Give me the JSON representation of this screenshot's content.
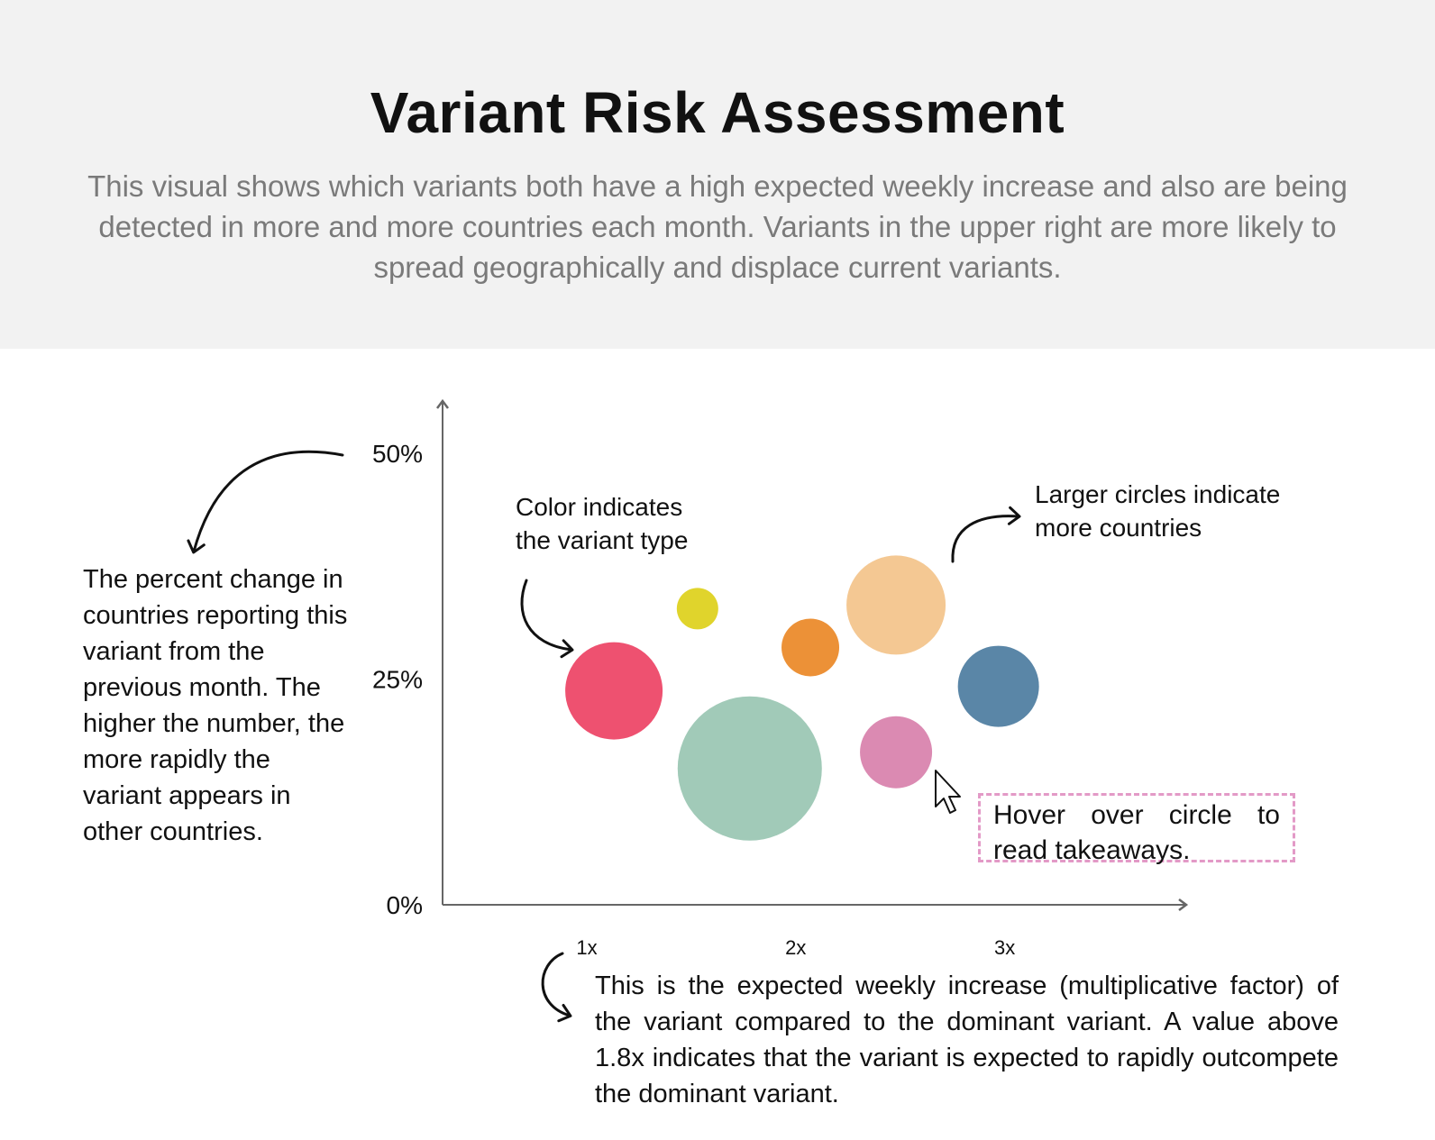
{
  "title": "Variant Risk Assessment",
  "subtitle": "This visual shows which variants both have a high expected weekly increase and also are being detected in more and more countries each month. Variants in the upper right are more likely to spread geographically and displace current variants.",
  "annotations": {
    "y_axis_note": "The percent change in countries reporting this variant from the previous month. The higher the number, the more rapidly the variant appears in other countries.",
    "color_note": "Color indicates the variant type",
    "size_note": "Larger circles indicate more countries",
    "x_axis_note": "This is the expected weekly increase (multiplicative factor) of the variant compared to the dominant variant. A value above 1.8x indicates that the variant is expected to rapidly outcompete the dominant variant.",
    "hover_hint": "Hover over circle to read takeaways."
  },
  "chart_data": {
    "type": "scatter",
    "xlabel": "",
    "ylabel": "",
    "x_ticks": [
      {
        "value": 1,
        "label": "1x"
      },
      {
        "value": 2,
        "label": "2x"
      },
      {
        "value": 3,
        "label": "3x"
      }
    ],
    "y_ticks": [
      {
        "value": 0,
        "label": "0%"
      },
      {
        "value": 25,
        "label": "25%"
      },
      {
        "value": 50,
        "label": "50%"
      }
    ],
    "xlim": [
      0.31,
      3.86
    ],
    "ylim": [
      0,
      55.6
    ],
    "points": [
      {
        "x": 1.13,
        "y": 23.7,
        "size": 54,
        "color": "#ee5170"
      },
      {
        "x": 1.53,
        "y": 32.8,
        "size": 23,
        "color": "#e0d42c"
      },
      {
        "x": 1.78,
        "y": 15.1,
        "size": 80,
        "color": "#a1cab8"
      },
      {
        "x": 2.07,
        "y": 28.5,
        "size": 32,
        "color": "#ec9137"
      },
      {
        "x": 2.48,
        "y": 33.2,
        "size": 55,
        "color": "#f4c893"
      },
      {
        "x": 2.48,
        "y": 16.9,
        "size": 40,
        "color": "#db8ab2"
      },
      {
        "x": 2.97,
        "y": 24.2,
        "size": 45,
        "color": "#5a86a7"
      }
    ],
    "grid": false,
    "legend": "none"
  }
}
